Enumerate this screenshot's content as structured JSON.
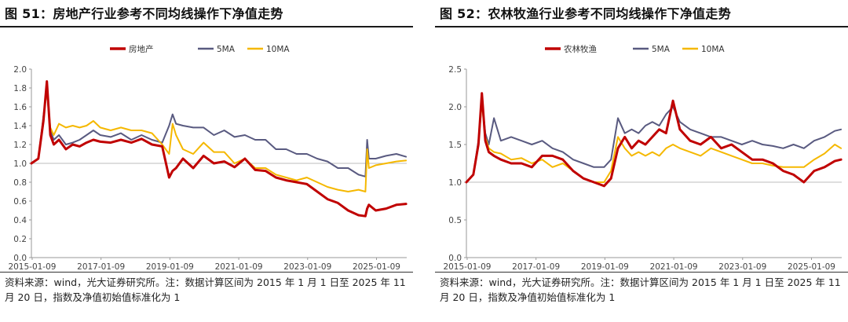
{
  "panels": [
    {
      "title": "图 51：房地产行业参考不同均线操作下净值走势",
      "source_line1": "资料来源：wind，光大证券研究所。注：数据计算区间为 2015 年 1 月 1 日至 2025 年 11",
      "source_line2": "月 20 日，指数及净值初始值标准化为 1"
    },
    {
      "title": "图 52：农林牧渔行业参考不同均线操作下净值走势",
      "source_line1": "资料来源：wind，光大证券研究所。注：数据计算区间为 2015 年 1 月 1 日至 2025 年 11",
      "source_line2": "月 20 日，指数及净值初始值标准化为 1"
    }
  ],
  "chart_data": [
    {
      "type": "line",
      "title": "",
      "xlabel": "",
      "ylabel": "",
      "x_ticks": [
        "2015-01-09",
        "2017-01-09",
        "2019-01-09",
        "2021-01-09",
        "2023-01-09",
        "2025-01-09"
      ],
      "y_ticks": [
        "0.0",
        "0.2",
        "0.4",
        "0.6",
        "0.8",
        "1.0",
        "1.2",
        "1.4",
        "1.6",
        "1.8",
        "2.0"
      ],
      "ylim": [
        0,
        2.0
      ],
      "xlim": [
        2015.0,
        2025.9
      ],
      "grid": false,
      "baseline": 1.0,
      "legend_position": "top-center",
      "colors": {
        "index": "#c00000",
        "ma5": "#595a80",
        "ma10": "#f5b800"
      },
      "x": [
        2015.0,
        2015.2,
        2015.35,
        2015.45,
        2015.55,
        2015.65,
        2015.8,
        2016.0,
        2016.2,
        2016.4,
        2016.6,
        2016.8,
        2017.0,
        2017.3,
        2017.6,
        2017.9,
        2018.2,
        2018.5,
        2018.8,
        2019.0,
        2019.1,
        2019.2,
        2019.4,
        2019.7,
        2020.0,
        2020.3,
        2020.6,
        2020.9,
        2021.2,
        2021.5,
        2021.8,
        2022.1,
        2022.4,
        2022.7,
        2023.0,
        2023.3,
        2023.6,
        2023.9,
        2024.2,
        2024.5,
        2024.7,
        2024.75,
        2024.8,
        2025.0,
        2025.3,
        2025.6,
        2025.88
      ],
      "series": [
        {
          "name": "房地产",
          "key": "index",
          "stroke_width": 3,
          "values": [
            1.0,
            1.05,
            1.45,
            1.87,
            1.3,
            1.2,
            1.25,
            1.15,
            1.2,
            1.18,
            1.22,
            1.25,
            1.23,
            1.22,
            1.25,
            1.22,
            1.26,
            1.2,
            1.18,
            0.85,
            0.92,
            0.95,
            1.05,
            0.95,
            1.08,
            1.0,
            1.02,
            0.96,
            1.05,
            0.93,
            0.92,
            0.85,
            0.82,
            0.8,
            0.78,
            0.7,
            0.62,
            0.58,
            0.5,
            0.45,
            0.44,
            0.52,
            0.56,
            0.5,
            0.52,
            0.56,
            0.57
          ]
        },
        {
          "name": "5MA",
          "key": "ma5",
          "stroke_width": 2,
          "values": [
            1.0,
            1.05,
            1.5,
            1.78,
            1.35,
            1.25,
            1.3,
            1.2,
            1.22,
            1.25,
            1.3,
            1.35,
            1.3,
            1.28,
            1.32,
            1.25,
            1.3,
            1.25,
            1.22,
            1.4,
            1.52,
            1.42,
            1.4,
            1.38,
            1.38,
            1.3,
            1.35,
            1.28,
            1.3,
            1.25,
            1.25,
            1.15,
            1.15,
            1.1,
            1.1,
            1.05,
            1.02,
            0.95,
            0.95,
            0.88,
            0.86,
            1.25,
            1.05,
            1.05,
            1.08,
            1.1,
            1.07
          ]
        },
        {
          "name": "10MA",
          "key": "ma10",
          "stroke_width": 2,
          "values": [
            1.0,
            1.05,
            1.48,
            1.78,
            1.38,
            1.3,
            1.42,
            1.38,
            1.4,
            1.38,
            1.4,
            1.45,
            1.38,
            1.35,
            1.38,
            1.35,
            1.35,
            1.32,
            1.2,
            1.1,
            1.42,
            1.3,
            1.15,
            1.1,
            1.22,
            1.12,
            1.12,
            1.0,
            1.05,
            0.95,
            0.95,
            0.88,
            0.85,
            0.82,
            0.85,
            0.8,
            0.75,
            0.72,
            0.7,
            0.72,
            0.7,
            1.15,
            0.95,
            0.98,
            1.0,
            1.02,
            1.03
          ]
        }
      ]
    },
    {
      "type": "line",
      "title": "",
      "xlabel": "",
      "ylabel": "",
      "x_ticks": [
        "2015-01-09",
        "2017-01-09",
        "2019-01-09",
        "2021-01-09",
        "2023-01-09",
        "2025-01-09"
      ],
      "y_ticks": [
        "0.0",
        "0.5",
        "1.0",
        "1.5",
        "2.0",
        "2.5"
      ],
      "ylim": [
        0,
        2.5
      ],
      "xlim": [
        2015.0,
        2025.9
      ],
      "grid": false,
      "baseline": 1.0,
      "legend_position": "top-center",
      "colors": {
        "index": "#c00000",
        "ma5": "#595a80",
        "ma10": "#f5b800"
      },
      "x": [
        2015.0,
        2015.2,
        2015.35,
        2015.45,
        2015.55,
        2015.65,
        2015.8,
        2016.0,
        2016.3,
        2016.6,
        2016.9,
        2017.2,
        2017.5,
        2017.8,
        2018.1,
        2018.4,
        2018.7,
        2019.0,
        2019.2,
        2019.4,
        2019.6,
        2019.8,
        2020.0,
        2020.2,
        2020.4,
        2020.6,
        2020.8,
        2021.0,
        2021.2,
        2021.5,
        2021.8,
        2022.1,
        2022.4,
        2022.7,
        2023.0,
        2023.3,
        2023.6,
        2023.9,
        2024.2,
        2024.5,
        2024.8,
        2025.1,
        2025.4,
        2025.7,
        2025.88
      ],
      "series": [
        {
          "name": "农林牧渔",
          "key": "index",
          "stroke_width": 3,
          "values": [
            1.0,
            1.1,
            1.5,
            2.18,
            1.55,
            1.4,
            1.35,
            1.3,
            1.25,
            1.25,
            1.2,
            1.35,
            1.35,
            1.3,
            1.15,
            1.05,
            1.0,
            0.95,
            1.05,
            1.45,
            1.6,
            1.45,
            1.55,
            1.5,
            1.6,
            1.7,
            1.65,
            2.08,
            1.7,
            1.55,
            1.5,
            1.6,
            1.45,
            1.5,
            1.4,
            1.3,
            1.3,
            1.25,
            1.15,
            1.1,
            1.0,
            1.15,
            1.2,
            1.28,
            1.3
          ]
        },
        {
          "name": "5MA",
          "key": "ma5",
          "stroke_width": 2,
          "values": [
            1.0,
            1.1,
            1.55,
            2.1,
            1.65,
            1.5,
            1.85,
            1.55,
            1.6,
            1.55,
            1.5,
            1.55,
            1.45,
            1.4,
            1.3,
            1.25,
            1.2,
            1.2,
            1.3,
            1.85,
            1.65,
            1.7,
            1.65,
            1.75,
            1.8,
            1.75,
            1.9,
            2.0,
            1.8,
            1.7,
            1.65,
            1.6,
            1.6,
            1.55,
            1.5,
            1.55,
            1.5,
            1.48,
            1.45,
            1.5,
            1.45,
            1.55,
            1.6,
            1.68,
            1.7
          ]
        },
        {
          "name": "10MA",
          "key": "ma10",
          "stroke_width": 2,
          "values": [
            1.0,
            1.1,
            1.5,
            2.05,
            1.6,
            1.45,
            1.4,
            1.38,
            1.3,
            1.32,
            1.25,
            1.3,
            1.2,
            1.25,
            1.15,
            1.05,
            1.0,
            1.0,
            1.15,
            1.6,
            1.45,
            1.35,
            1.4,
            1.35,
            1.4,
            1.35,
            1.45,
            1.5,
            1.45,
            1.4,
            1.35,
            1.45,
            1.4,
            1.35,
            1.3,
            1.25,
            1.25,
            1.22,
            1.2,
            1.2,
            1.2,
            1.3,
            1.38,
            1.5,
            1.45
          ]
        }
      ]
    }
  ]
}
